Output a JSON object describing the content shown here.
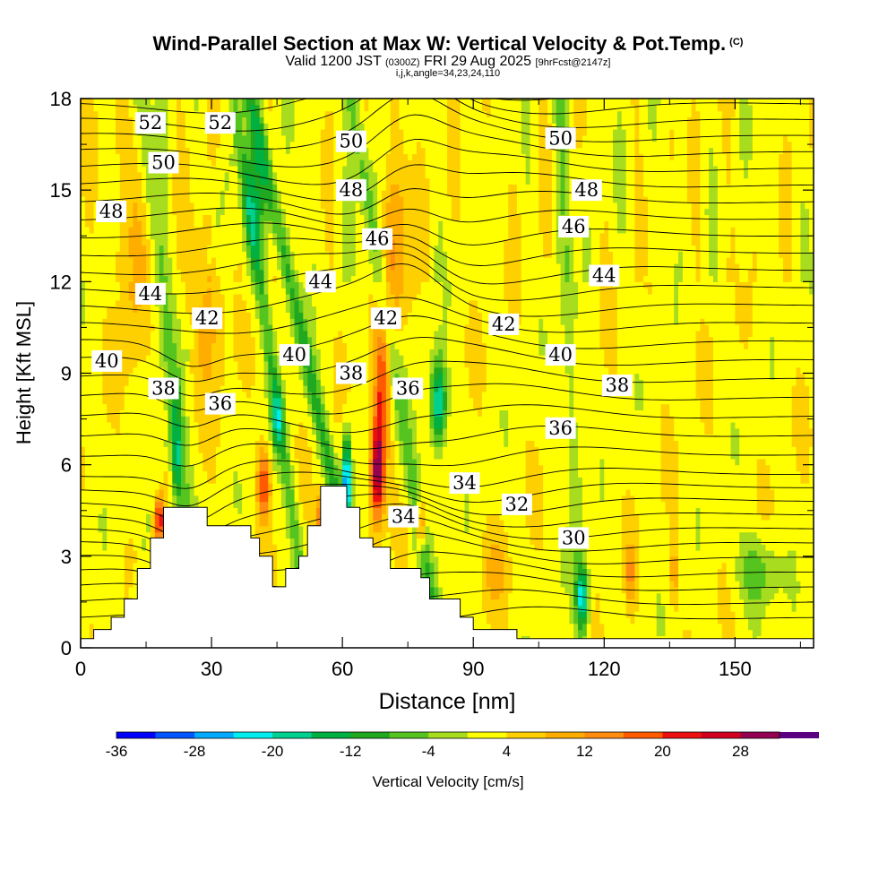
{
  "header": {
    "title": "Wind-Parallel Section at Max W: Vertical Velocity & Pot.Temp.",
    "copyright": "(C)",
    "valid_main": "Valid 1200 JST",
    "valid_utc": "(0300Z)",
    "valid_date": "FRI 29 Aug 2025",
    "forecast": "[9hrFcst@2147z]",
    "indices": "i,j,k,angle=34,23,24,110"
  },
  "chart_data": {
    "type": "heatmap",
    "xlabel": "Distance [nm]",
    "ylabel": "Height [Kft MSL]",
    "xlim": [
      0,
      168
    ],
    "ylim": [
      0,
      18
    ],
    "xticks": [
      0,
      30,
      60,
      90,
      120,
      150
    ],
    "yticks": [
      0,
      3,
      6,
      9,
      12,
      15,
      18
    ],
    "colorbar": {
      "label": "Vertical Velocity [cm/s]",
      "tick_labels": [
        "-36",
        "-28",
        "-20",
        "-12",
        "-4",
        "4",
        "12",
        "20",
        "28"
      ],
      "tick_values": [
        -36,
        -28,
        -20,
        -12,
        -4,
        4,
        12,
        20,
        28
      ],
      "min": -36,
      "max": 32,
      "step": 4,
      "colors": [
        "#0000ff",
        "#0055ff",
        "#00aaff",
        "#00eeee",
        "#00d090",
        "#00b040",
        "#20a820",
        "#56c41e",
        "#a8dc1e",
        "#ffff00",
        "#ffd000",
        "#ffae00",
        "#ff8c10",
        "#ff5a00",
        "#ee1010",
        "#d0001e",
        "#960050",
        "#5a0080"
      ]
    },
    "terrain": [
      [
        0,
        0.3
      ],
      [
        3,
        0.3
      ],
      [
        3,
        0.6
      ],
      [
        7,
        0.6
      ],
      [
        7,
        1.0
      ],
      [
        10,
        1.0
      ],
      [
        10,
        1.6
      ],
      [
        13,
        1.6
      ],
      [
        13,
        2.6
      ],
      [
        16,
        2.6
      ],
      [
        16,
        3.6
      ],
      [
        19,
        3.6
      ],
      [
        19,
        4.6
      ],
      [
        29,
        4.6
      ],
      [
        29,
        4.0
      ],
      [
        39,
        4.0
      ],
      [
        39,
        3.6
      ],
      [
        41,
        3.6
      ],
      [
        41,
        3.0
      ],
      [
        44,
        3.0
      ],
      [
        44,
        2.0
      ],
      [
        47,
        2.0
      ],
      [
        47,
        2.6
      ],
      [
        50,
        2.6
      ],
      [
        50,
        3.0
      ],
      [
        52,
        3.0
      ],
      [
        52,
        4.0
      ],
      [
        55,
        4.0
      ],
      [
        55,
        5.3
      ],
      [
        61,
        5.3
      ],
      [
        61,
        4.6
      ],
      [
        64,
        4.6
      ],
      [
        64,
        3.6
      ],
      [
        67,
        3.6
      ],
      [
        67,
        3.3
      ],
      [
        71,
        3.3
      ],
      [
        71,
        2.6
      ],
      [
        78,
        2.6
      ],
      [
        78,
        2.3
      ],
      [
        80,
        2.3
      ],
      [
        80,
        1.6
      ],
      [
        87,
        1.6
      ],
      [
        87,
        1.0
      ],
      [
        90,
        1.0
      ],
      [
        90,
        0.6
      ],
      [
        100,
        0.6
      ],
      [
        100,
        0.3
      ],
      [
        168,
        0.3
      ]
    ],
    "theta_labels": [
      {
        "text": "52",
        "x": 16,
        "y": 17.2
      },
      {
        "text": "52",
        "x": 32,
        "y": 17.2
      },
      {
        "text": "50",
        "x": 19,
        "y": 15.9
      },
      {
        "text": "50",
        "x": 62,
        "y": 16.6
      },
      {
        "text": "50",
        "x": 110,
        "y": 16.7
      },
      {
        "text": "48",
        "x": 7,
        "y": 14.3
      },
      {
        "text": "48",
        "x": 62,
        "y": 15.0
      },
      {
        "text": "48",
        "x": 116,
        "y": 15.0
      },
      {
        "text": "46",
        "x": 68,
        "y": 13.4
      },
      {
        "text": "46",
        "x": 113,
        "y": 13.8
      },
      {
        "text": "44",
        "x": 16,
        "y": 11.6
      },
      {
        "text": "44",
        "x": 55,
        "y": 12.0
      },
      {
        "text": "44",
        "x": 120,
        "y": 12.2
      },
      {
        "text": "42",
        "x": 29,
        "y": 10.8
      },
      {
        "text": "42",
        "x": 70,
        "y": 10.8
      },
      {
        "text": "42",
        "x": 97,
        "y": 10.6
      },
      {
        "text": "40",
        "x": 6,
        "y": 9.4
      },
      {
        "text": "40",
        "x": 49,
        "y": 9.6
      },
      {
        "text": "40",
        "x": 110,
        "y": 9.6
      },
      {
        "text": "38",
        "x": 19,
        "y": 8.5
      },
      {
        "text": "38",
        "x": 62,
        "y": 9.0
      },
      {
        "text": "38",
        "x": 123,
        "y": 8.6
      },
      {
        "text": "36",
        "x": 32,
        "y": 8.0
      },
      {
        "text": "36",
        "x": 75,
        "y": 8.5
      },
      {
        "text": "36",
        "x": 110,
        "y": 7.2
      },
      {
        "text": "34",
        "x": 88,
        "y": 5.4
      },
      {
        "text": "34",
        "x": 74,
        "y": 4.3
      },
      {
        "text": "32",
        "x": 100,
        "y": 4.7
      },
      {
        "text": "30",
        "x": 113,
        "y": 3.6
      }
    ]
  }
}
